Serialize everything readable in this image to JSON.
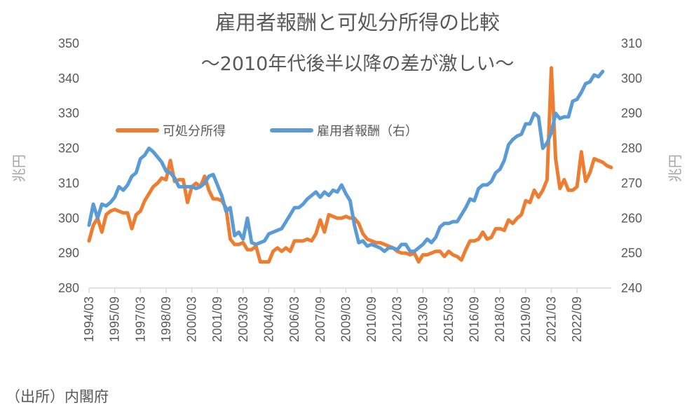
{
  "chart_data": {
    "type": "line",
    "title": "雇用者報酬と可処分所得の比較",
    "subtitle": "～2010年代後半以降の差が激しい～",
    "ylabel": "兆円",
    "ylabel_right": "兆円",
    "ylim": [
      280,
      350
    ],
    "y2lim": [
      240,
      310
    ],
    "yticks": [
      280,
      290,
      300,
      310,
      320,
      330,
      340,
      350
    ],
    "y2ticks": [
      240,
      250,
      260,
      270,
      280,
      290,
      300,
      310
    ],
    "x_start": "1994/03",
    "xticks": [
      "1994/03",
      "1995/09",
      "1997/03",
      "1998/09",
      "2000/03",
      "2001/09",
      "2003/03",
      "2004/09",
      "2006/03",
      "2007/09",
      "2009/03",
      "2010/09",
      "2012/03",
      "2013/09",
      "2015/03",
      "2016/09",
      "2018/03",
      "2019/09",
      "2021/03",
      "2022/09"
    ],
    "legend_position": "upper-left",
    "series": [
      {
        "name": "可処分所得",
        "axis": "left",
        "color": "#ED7D31",
        "values": [
          293.5,
          298,
          300,
          296,
          301,
          302,
          302.5,
          302,
          301.5,
          301.5,
          297,
          301,
          302,
          305,
          307,
          309,
          310,
          311.5,
          311,
          316.5,
          310.5,
          311,
          311,
          304.5,
          309,
          310,
          309,
          312,
          308,
          305.5,
          305.5,
          305,
          303,
          294,
          292.5,
          292.5,
          293,
          291,
          291,
          292,
          287.5,
          287.5,
          287.5,
          290.5,
          291.5,
          290.5,
          291.5,
          290.5,
          293.5,
          293.5,
          293.5,
          294,
          293.5,
          295.5,
          299.5,
          296,
          301,
          300.5,
          300,
          300,
          300.5,
          300,
          300,
          298.5,
          295.5,
          294,
          293.5,
          293,
          293,
          292.5,
          292,
          291.5,
          290.5,
          290,
          290,
          289.5,
          290,
          287.5,
          289.5,
          289.5,
          290,
          290.5,
          290.5,
          289,
          290.5,
          289.5,
          289,
          288,
          291,
          293.5,
          293.5,
          294,
          296,
          294,
          294.5,
          297,
          297,
          296.5,
          299.5,
          298.5,
          300,
          301,
          305,
          304.5,
          308,
          306,
          308,
          311,
          343,
          317,
          308.5,
          311,
          308,
          308,
          309,
          319,
          310.5,
          313,
          317,
          316.5,
          316,
          315,
          314.5
        ]
      },
      {
        "name": "雇用者報酬（右）",
        "axis": "right",
        "color": "#5B9BD5",
        "values": [
          258,
          264,
          260,
          264,
          263.5,
          264.5,
          266,
          269,
          268,
          269.5,
          272,
          273,
          277,
          278,
          280,
          279,
          277.5,
          276,
          273.5,
          273,
          271.5,
          269,
          269,
          269,
          269,
          268.5,
          269,
          270,
          272,
          272.5,
          269.5,
          266.5,
          262,
          263,
          255,
          256,
          254,
          260,
          253,
          252.5,
          253,
          253.5,
          255.5,
          256,
          256.5,
          257,
          259,
          261,
          263,
          263,
          264,
          265.5,
          266.5,
          267.5,
          266,
          267.5,
          266.5,
          268,
          267.5,
          269.5,
          267,
          265,
          258,
          253,
          253.5,
          252,
          252.5,
          252,
          251.5,
          250.5,
          251.5,
          251.5,
          251,
          252.5,
          252.5,
          250.5,
          250.5,
          251.5,
          252.5,
          254,
          253,
          254.5,
          257.5,
          258.5,
          258.5,
          259,
          259,
          261,
          263,
          265.5,
          265,
          268.5,
          269.5,
          269.5,
          270.5,
          273,
          274,
          276.5,
          281,
          282.5,
          283.5,
          284,
          287,
          287,
          290,
          289,
          280,
          281.5,
          284.5,
          290,
          288.5,
          289,
          289,
          293.5,
          294,
          296,
          298.5,
          299,
          301,
          300.5,
          302
        ]
      }
    ]
  },
  "legend": {
    "series_1": "可処分所得",
    "series_2": "雇用者報酬（右）"
  },
  "source": "（出所）内閣府"
}
